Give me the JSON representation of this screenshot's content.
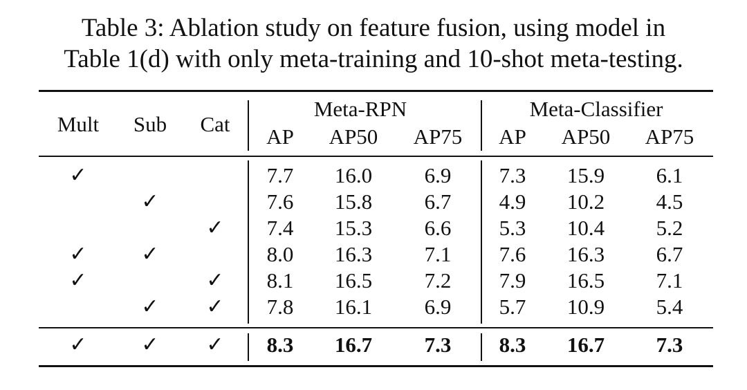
{
  "caption": {
    "line1": "Table 3: Ablation study on feature fusion, using model in",
    "line2": "Table 1(d) with only meta-training and 10-shot meta-testing."
  },
  "table": {
    "row_headers": [
      "Mult",
      "Sub",
      "Cat"
    ],
    "groups": [
      "Meta-RPN",
      "Meta-Classifier"
    ],
    "metrics": [
      "AP",
      "AP50",
      "AP75",
      "AP",
      "AP50",
      "AP75"
    ],
    "check_glyph": "✓",
    "rows": [
      {
        "mult": true,
        "sub": false,
        "cat": false,
        "vals": [
          "7.7",
          "16.0",
          "6.9",
          "7.3",
          "15.9",
          "6.1"
        ],
        "bold": false
      },
      {
        "mult": false,
        "sub": true,
        "cat": false,
        "vals": [
          "7.6",
          "15.8",
          "6.7",
          "4.9",
          "10.2",
          "4.5"
        ],
        "bold": false
      },
      {
        "mult": false,
        "sub": false,
        "cat": true,
        "vals": [
          "7.4",
          "15.3",
          "6.6",
          "5.3",
          "10.4",
          "5.2"
        ],
        "bold": false
      },
      {
        "mult": true,
        "sub": true,
        "cat": false,
        "vals": [
          "8.0",
          "16.3",
          "7.1",
          "7.6",
          "16.3",
          "6.7"
        ],
        "bold": false
      },
      {
        "mult": true,
        "sub": false,
        "cat": true,
        "vals": [
          "8.1",
          "16.5",
          "7.2",
          "7.9",
          "16.5",
          "7.1"
        ],
        "bold": false
      },
      {
        "mult": false,
        "sub": true,
        "cat": true,
        "vals": [
          "7.8",
          "16.1",
          "6.9",
          "5.7",
          "10.9",
          "5.4"
        ],
        "bold": false
      },
      {
        "mult": true,
        "sub": true,
        "cat": true,
        "vals": [
          "8.3",
          "16.7",
          "7.3",
          "8.3",
          "16.7",
          "7.3"
        ],
        "bold": true
      }
    ]
  }
}
